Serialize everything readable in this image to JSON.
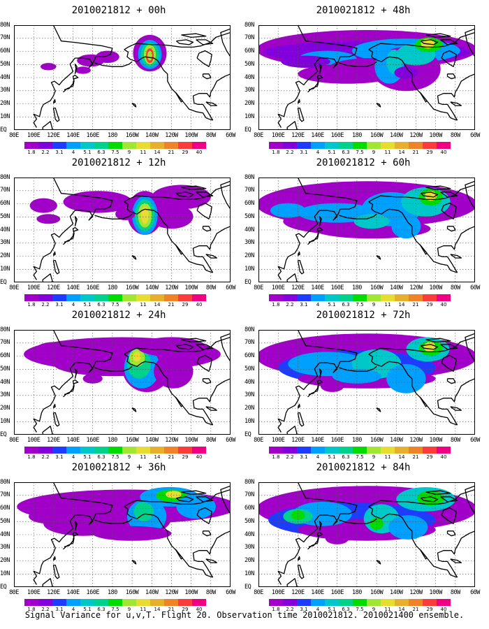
{
  "panels": [
    {
      "title": "2010021812 + 00h",
      "lead_hours": 0
    },
    {
      "title": "2010021812 + 48h",
      "lead_hours": 48
    },
    {
      "title": "2010021812 + 12h",
      "lead_hours": 12
    },
    {
      "title": "2010021812 + 60h",
      "lead_hours": 60
    },
    {
      "title": "2010021812 + 24h",
      "lead_hours": 24
    },
    {
      "title": "2010021812 + 72h",
      "lead_hours": 72
    },
    {
      "title": "2010021812 + 36h",
      "lead_hours": 36
    },
    {
      "title": "2010021812 + 84h",
      "lead_hours": 84
    }
  ],
  "lat_labels": [
    "80N",
    "70N",
    "60N",
    "50N",
    "40N",
    "30N",
    "20N",
    "10N",
    "EQ"
  ],
  "lon_labels": [
    "80E",
    "100E",
    "120E",
    "140E",
    "160E",
    "180",
    "160W",
    "140W",
    "120W",
    "100W",
    "80W",
    "60W"
  ],
  "colorbar": {
    "labels": [
      "1.8",
      "2.2",
      "3.1",
      "4",
      "5.1",
      "6.3",
      "7.5",
      "9",
      "11",
      "14",
      "21",
      "29",
      "40"
    ],
    "colors": [
      "#a000c8",
      "#8200dc",
      "#1e3cff",
      "#00a0ff",
      "#00c8c8",
      "#00d28c",
      "#00dc00",
      "#a0e632",
      "#e6dc32",
      "#e6af2d",
      "#f08228",
      "#fa3c3c",
      "#f00082"
    ]
  },
  "caption": "Signal Variance for u,v,T. Flight 20. Observation time 2010021812. 2010021400 ensemble."
}
